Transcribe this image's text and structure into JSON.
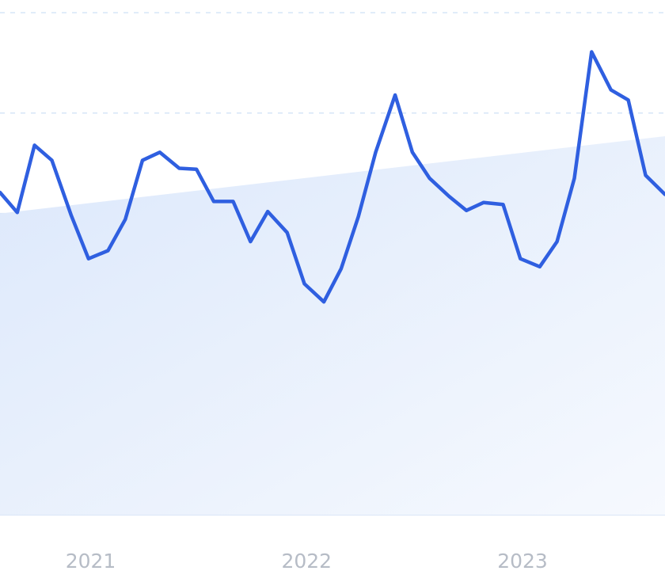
{
  "chart_data": {
    "type": "line",
    "title": "",
    "xlabel": "",
    "ylabel": "",
    "x_ticks": [
      {
        "label": "2021",
        "x": 2021.0
      },
      {
        "label": "2022",
        "x": 2022.0
      },
      {
        "label": "2023",
        "x": 2023.0
      }
    ],
    "y_gridlines": [
      0,
      1,
      2,
      3,
      4,
      5
    ],
    "ylim": [
      0,
      5
    ],
    "grid": true,
    "series": [
      {
        "color": "#2f5fe0",
        "points": [
          [
            2020.58,
            3.21
          ],
          [
            2020.66,
            3.01
          ],
          [
            2020.74,
            3.68
          ],
          [
            2020.82,
            3.53
          ],
          [
            2020.91,
            2.98
          ],
          [
            2020.99,
            2.55
          ],
          [
            2021.08,
            2.63
          ],
          [
            2021.16,
            2.94
          ],
          [
            2021.24,
            3.53
          ],
          [
            2021.32,
            3.61
          ],
          [
            2021.41,
            3.45
          ],
          [
            2021.49,
            3.44
          ],
          [
            2021.57,
            3.12
          ],
          [
            2021.66,
            3.12
          ],
          [
            2021.74,
            2.72
          ],
          [
            2021.82,
            3.02
          ],
          [
            2021.91,
            2.81
          ],
          [
            2021.99,
            2.3
          ],
          [
            2022.08,
            2.12
          ],
          [
            2022.16,
            2.45
          ],
          [
            2022.24,
            2.97
          ],
          [
            2022.32,
            3.61
          ],
          [
            2022.41,
            4.18
          ],
          [
            2022.49,
            3.61
          ],
          [
            2022.57,
            3.35
          ],
          [
            2022.66,
            3.17
          ],
          [
            2022.74,
            3.03
          ],
          [
            2022.82,
            3.11
          ],
          [
            2022.91,
            3.09
          ],
          [
            2022.99,
            2.55
          ],
          [
            2023.08,
            2.47
          ],
          [
            2023.16,
            2.72
          ],
          [
            2023.24,
            3.35
          ],
          [
            2023.32,
            4.61
          ],
          [
            2023.41,
            4.23
          ],
          [
            2023.49,
            4.13
          ],
          [
            2023.57,
            3.38
          ],
          [
            2023.66,
            3.19
          ]
        ]
      }
    ],
    "trend_area": {
      "color": "#dbe8fb",
      "points": [
        [
          2020.58,
          3.0
        ],
        [
          2023.66,
          3.77
        ]
      ]
    }
  }
}
